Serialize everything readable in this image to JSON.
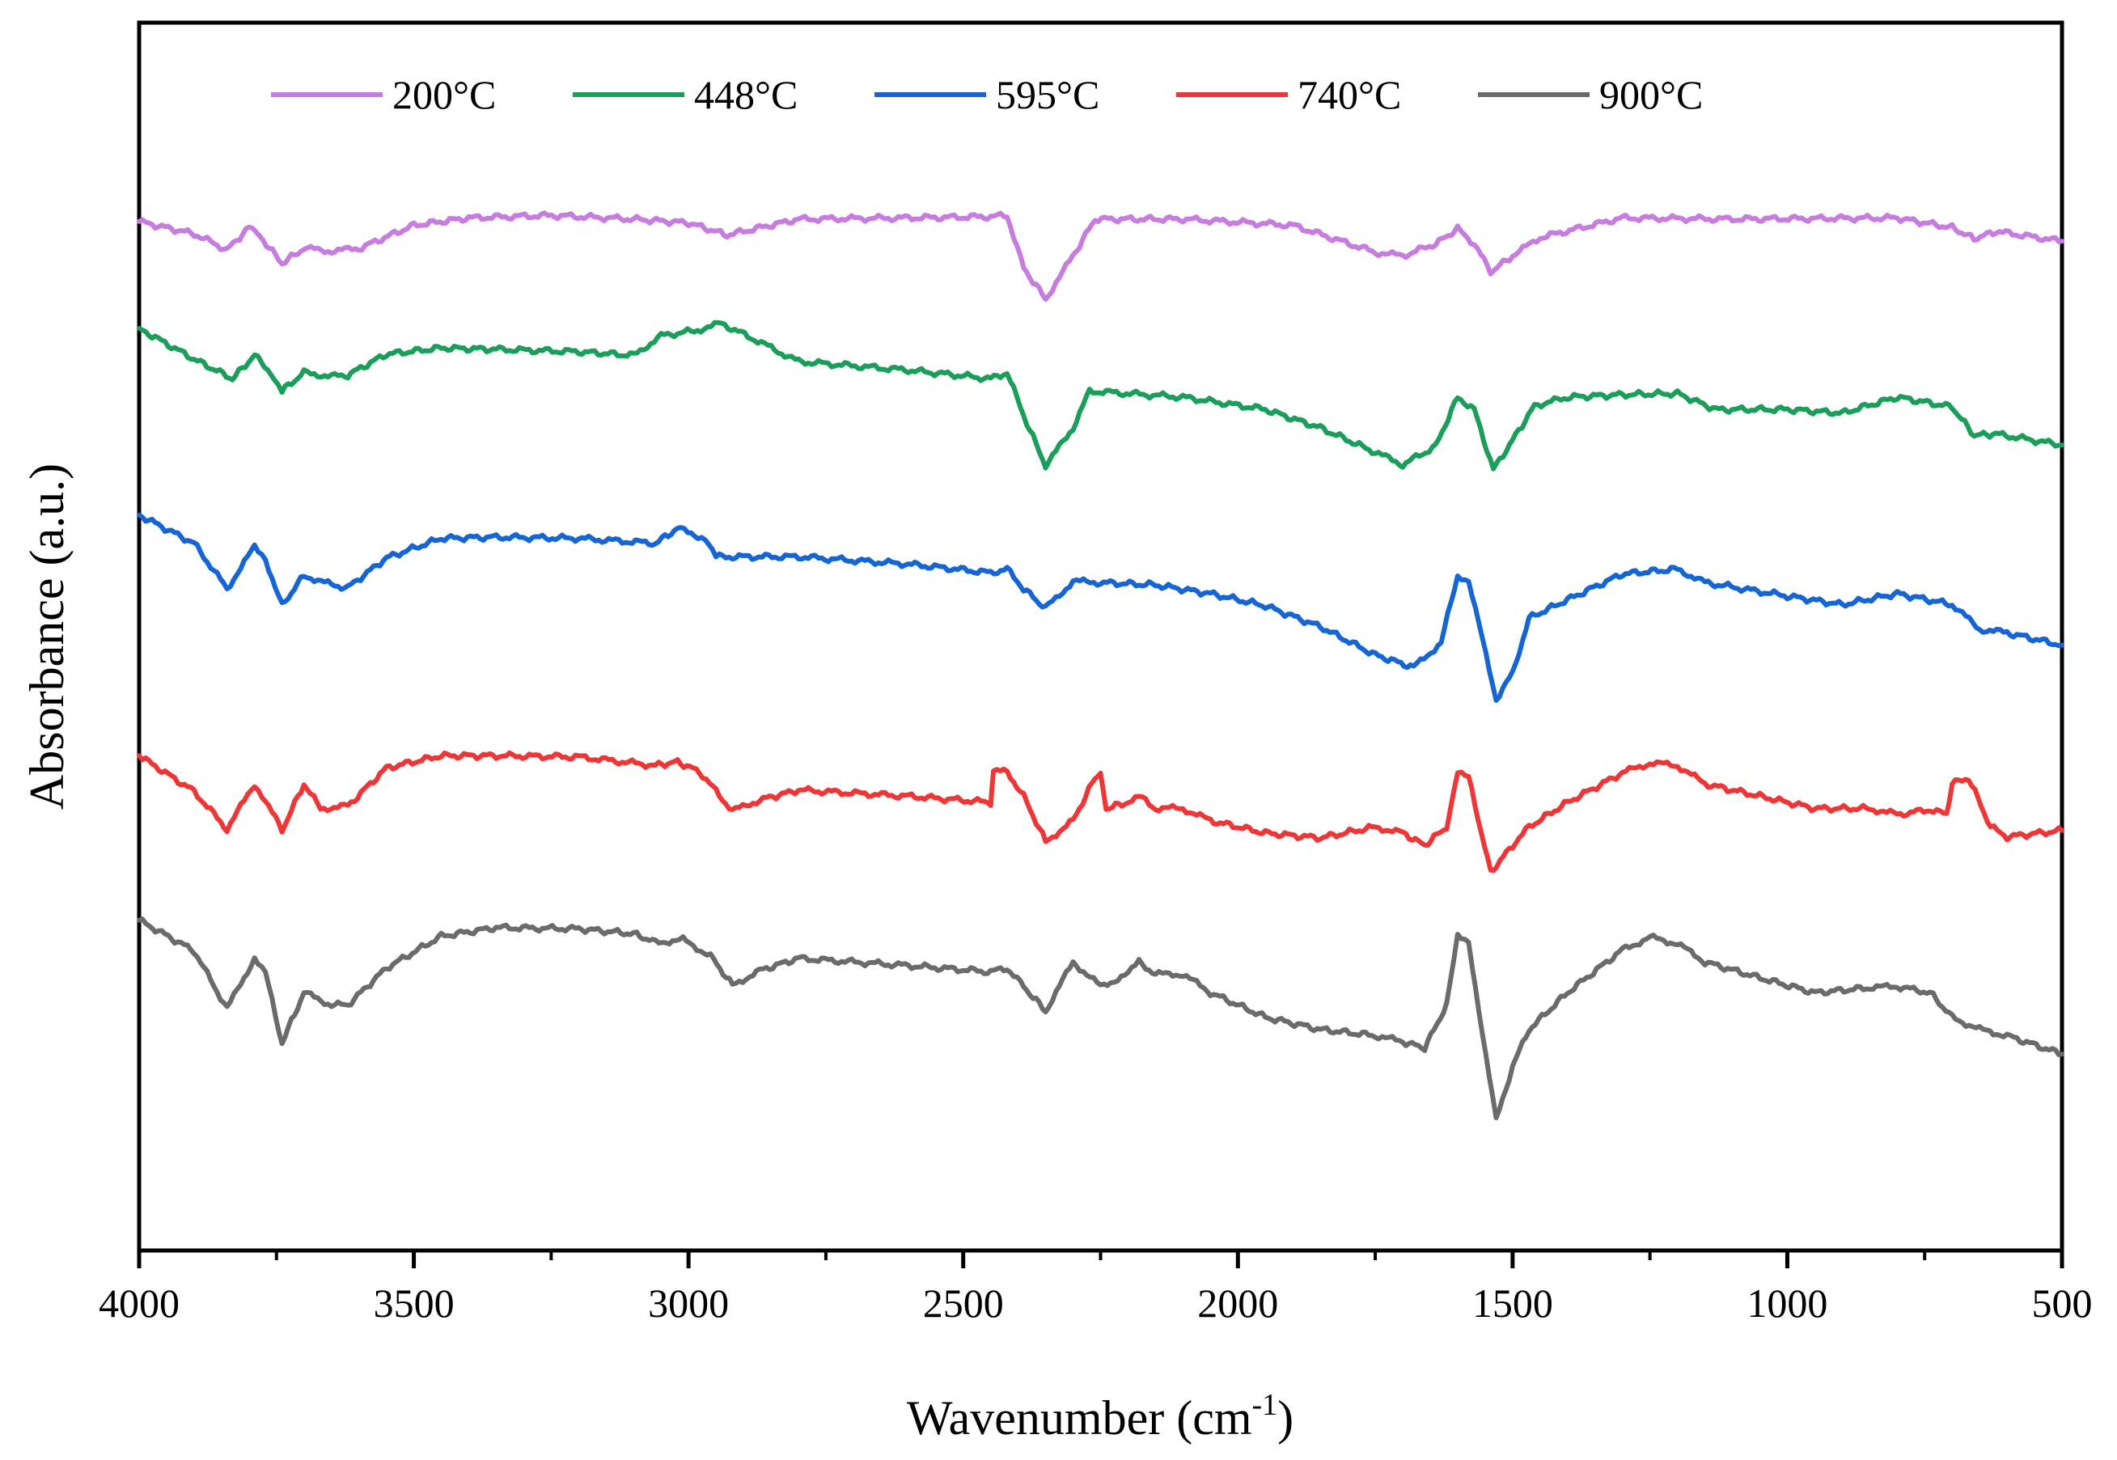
{
  "chart_data": {
    "type": "line",
    "title": "",
    "xlabel": "Wavenumber (cm",
    "xlabel_sup": "-1",
    "xlabel_close": ")",
    "ylabel": "Absorbance (a.u.)",
    "xlim": [
      4000,
      500
    ],
    "x_reversed": true,
    "xticks": [
      4000,
      3500,
      3000,
      2500,
      2000,
      1500,
      1000,
      500
    ],
    "xtick_labels": [
      "4000",
      "3500",
      "3000",
      "2500",
      "2000",
      "1500",
      "1000",
      "500"
    ],
    "y_tick_labels_shown": false,
    "ylim": [
      0,
      100
    ],
    "legend_position": "top",
    "series": [
      {
        "name": "200°C",
        "color": "#c77ce0",
        "points": [
          [
            4000,
            83.8
          ],
          [
            3900,
            82.8
          ],
          [
            3840,
            81.5
          ],
          [
            3800,
            83.3
          ],
          [
            3780,
            82.6
          ],
          [
            3740,
            80.4
          ],
          [
            3700,
            81.6
          ],
          [
            3650,
            81.4
          ],
          [
            3600,
            81.6
          ],
          [
            3500,
            83.5
          ],
          [
            3400,
            84.1
          ],
          [
            3250,
            84.3
          ],
          [
            3100,
            84.0
          ],
          [
            3000,
            83.7
          ],
          [
            2930,
            82.7
          ],
          [
            2800,
            84.0
          ],
          [
            2600,
            84.1
          ],
          [
            2450,
            84.2
          ],
          [
            2420,
            84.3
          ],
          [
            2390,
            80.0
          ],
          [
            2350,
            77.5
          ],
          [
            2300,
            81.0
          ],
          [
            2260,
            84.0
          ],
          [
            2100,
            84.0
          ],
          [
            1900,
            83.5
          ],
          [
            1750,
            81.3
          ],
          [
            1700,
            81.0
          ],
          [
            1640,
            82.0
          ],
          [
            1600,
            83.2
          ],
          [
            1570,
            82.0
          ],
          [
            1540,
            79.7
          ],
          [
            1500,
            81.0
          ],
          [
            1450,
            82.5
          ],
          [
            1300,
            84.1
          ],
          [
            1100,
            84.0
          ],
          [
            800,
            84.1
          ],
          [
            700,
            83.3
          ],
          [
            660,
            82.4
          ],
          [
            620,
            83.0
          ],
          [
            500,
            82.2
          ]
        ]
      },
      {
        "name": "448°C",
        "color": "#1a9e5a",
        "points": [
          [
            4000,
            75.1
          ],
          [
            3900,
            72.6
          ],
          [
            3830,
            71.0
          ],
          [
            3790,
            72.9
          ],
          [
            3760,
            71.5
          ],
          [
            3740,
            70.0
          ],
          [
            3700,
            71.5
          ],
          [
            3650,
            71.2
          ],
          [
            3620,
            71.3
          ],
          [
            3550,
            73.0
          ],
          [
            3450,
            73.5
          ],
          [
            3350,
            73.4
          ],
          [
            3200,
            73.2
          ],
          [
            3100,
            72.9
          ],
          [
            3050,
            74.5
          ],
          [
            2990,
            74.9
          ],
          [
            2940,
            75.5
          ],
          [
            2880,
            74.2
          ],
          [
            2800,
            72.4
          ],
          [
            2600,
            71.7
          ],
          [
            2450,
            71.0
          ],
          [
            2420,
            71.5
          ],
          [
            2390,
            68.0
          ],
          [
            2350,
            63.9
          ],
          [
            2300,
            67.0
          ],
          [
            2270,
            70.0
          ],
          [
            2100,
            69.5
          ],
          [
            1950,
            68.5
          ],
          [
            1850,
            67.0
          ],
          [
            1750,
            65.0
          ],
          [
            1700,
            64.0
          ],
          [
            1640,
            65.5
          ],
          [
            1600,
            69.5
          ],
          [
            1570,
            68.5
          ],
          [
            1535,
            63.6
          ],
          [
            1500,
            66.0
          ],
          [
            1460,
            68.8
          ],
          [
            1400,
            69.5
          ],
          [
            1300,
            69.7
          ],
          [
            1200,
            69.8
          ],
          [
            1130,
            68.5
          ],
          [
            1000,
            68.5
          ],
          [
            900,
            68.2
          ],
          [
            800,
            69.5
          ],
          [
            700,
            68.7
          ],
          [
            660,
            66.4
          ],
          [
            620,
            66.5
          ],
          [
            500,
            65.6
          ]
        ]
      },
      {
        "name": "595°C",
        "color": "#1565d4",
        "points": [
          [
            4000,
            59.9
          ],
          [
            3900,
            57.6
          ],
          [
            3840,
            53.9
          ],
          [
            3790,
            57.3
          ],
          [
            3770,
            56.3
          ],
          [
            3740,
            52.5
          ],
          [
            3700,
            55.0
          ],
          [
            3650,
            54.2
          ],
          [
            3620,
            54.0
          ],
          [
            3550,
            56.4
          ],
          [
            3450,
            58.0
          ],
          [
            3350,
            58.1
          ],
          [
            3200,
            58.0
          ],
          [
            3060,
            57.6
          ],
          [
            3020,
            58.8
          ],
          [
            2970,
            58.0
          ],
          [
            2950,
            56.5
          ],
          [
            2800,
            56.5
          ],
          [
            2600,
            55.9
          ],
          [
            2450,
            55.2
          ],
          [
            2420,
            55.5
          ],
          [
            2390,
            53.9
          ],
          [
            2350,
            52.3
          ],
          [
            2300,
            54.5
          ],
          [
            2250,
            54.4
          ],
          [
            2150,
            54.2
          ],
          [
            2050,
            53.5
          ],
          [
            1950,
            52.5
          ],
          [
            1850,
            50.8
          ],
          [
            1750,
            48.5
          ],
          [
            1680,
            47.5
          ],
          [
            1630,
            49.5
          ],
          [
            1600,
            55.0
          ],
          [
            1580,
            54.6
          ],
          [
            1530,
            44.9
          ],
          [
            1500,
            47.0
          ],
          [
            1470,
            51.5
          ],
          [
            1400,
            53.0
          ],
          [
            1300,
            55.1
          ],
          [
            1200,
            55.5
          ],
          [
            1150,
            54.4
          ],
          [
            1000,
            53.3
          ],
          [
            900,
            52.6
          ],
          [
            800,
            53.5
          ],
          [
            700,
            52.6
          ],
          [
            650,
            50.6
          ],
          [
            600,
            50.3
          ],
          [
            500,
            49.3
          ]
        ]
      },
      {
        "name": "740°C",
        "color": "#ee3636",
        "points": [
          [
            4000,
            40.3
          ],
          [
            3900,
            37.4
          ],
          [
            3840,
            34.3
          ],
          [
            3790,
            38.0
          ],
          [
            3770,
            36.7
          ],
          [
            3740,
            34.2
          ],
          [
            3700,
            38.0
          ],
          [
            3670,
            36.0
          ],
          [
            3620,
            36.2
          ],
          [
            3550,
            39.3
          ],
          [
            3450,
            40.3
          ],
          [
            3350,
            40.3
          ],
          [
            3200,
            40.2
          ],
          [
            3060,
            39.5
          ],
          [
            3020,
            39.8
          ],
          [
            2980,
            39.0
          ],
          [
            2920,
            35.8
          ],
          [
            2870,
            36.7
          ],
          [
            2800,
            37.5
          ],
          [
            2600,
            37.0
          ],
          [
            2450,
            36.5
          ],
          [
            2445,
            39.0
          ],
          [
            2420,
            39.0
          ],
          [
            2390,
            37.0
          ],
          [
            2350,
            33.3
          ],
          [
            2300,
            35.0
          ],
          [
            2260,
            38.5
          ],
          [
            2250,
            38.8
          ],
          [
            2240,
            36.0
          ],
          [
            2200,
            36.5
          ],
          [
            2180,
            37.0
          ],
          [
            2150,
            36.0
          ],
          [
            2100,
            36.0
          ],
          [
            2050,
            35.0
          ],
          [
            1950,
            34.0
          ],
          [
            1850,
            33.6
          ],
          [
            1750,
            34.5
          ],
          [
            1700,
            34.0
          ],
          [
            1660,
            33.0
          ],
          [
            1620,
            34.5
          ],
          [
            1600,
            39.0
          ],
          [
            1580,
            38.5
          ],
          [
            1540,
            30.8
          ],
          [
            1500,
            33.0
          ],
          [
            1470,
            34.5
          ],
          [
            1400,
            36.5
          ],
          [
            1300,
            38.9
          ],
          [
            1250,
            39.7
          ],
          [
            1200,
            39.5
          ],
          [
            1150,
            38.0
          ],
          [
            1050,
            37.0
          ],
          [
            950,
            36.0
          ],
          [
            850,
            36.0
          ],
          [
            800,
            35.5
          ],
          [
            740,
            35.9
          ],
          [
            710,
            35.5
          ],
          [
            700,
            38.0
          ],
          [
            670,
            38.5
          ],
          [
            630,
            34.5
          ],
          [
            600,
            33.7
          ],
          [
            500,
            34.2
          ]
        ]
      },
      {
        "name": "900°C",
        "color": "#6b6b6b",
        "points": [
          [
            4000,
            26.9
          ],
          [
            3900,
            24.4
          ],
          [
            3840,
            19.7
          ],
          [
            3790,
            23.8
          ],
          [
            3770,
            22.6
          ],
          [
            3740,
            16.9
          ],
          [
            3700,
            21.0
          ],
          [
            3650,
            20.0
          ],
          [
            3620,
            20.0
          ],
          [
            3550,
            23.0
          ],
          [
            3450,
            25.6
          ],
          [
            3350,
            26.3
          ],
          [
            3200,
            26.2
          ],
          [
            3100,
            25.8
          ],
          [
            3060,
            25.1
          ],
          [
            3010,
            25.3
          ],
          [
            2960,
            24.0
          ],
          [
            2920,
            21.6
          ],
          [
            2870,
            22.8
          ],
          [
            2800,
            23.8
          ],
          [
            2600,
            23.2
          ],
          [
            2450,
            22.7
          ],
          [
            2420,
            23.0
          ],
          [
            2390,
            21.5
          ],
          [
            2350,
            19.5
          ],
          [
            2300,
            23.5
          ],
          [
            2250,
            21.5
          ],
          [
            2200,
            22.5
          ],
          [
            2180,
            23.5
          ],
          [
            2150,
            22.5
          ],
          [
            2100,
            22.5
          ],
          [
            2050,
            21.0
          ],
          [
            1950,
            19.0
          ],
          [
            1850,
            18.0
          ],
          [
            1750,
            17.5
          ],
          [
            1700,
            17.0
          ],
          [
            1660,
            16.5
          ],
          [
            1620,
            20.0
          ],
          [
            1600,
            25.5
          ],
          [
            1580,
            25.0
          ],
          [
            1530,
            10.6
          ],
          [
            1500,
            15.0
          ],
          [
            1470,
            18.0
          ],
          [
            1400,
            21.0
          ],
          [
            1300,
            24.5
          ],
          [
            1250,
            25.5
          ],
          [
            1200,
            25.0
          ],
          [
            1150,
            23.5
          ],
          [
            1050,
            22.2
          ],
          [
            950,
            21.0
          ],
          [
            850,
            21.4
          ],
          [
            800,
            21.5
          ],
          [
            740,
            21.0
          ],
          [
            700,
            19.0
          ],
          [
            650,
            18.0
          ],
          [
            600,
            17.5
          ],
          [
            500,
            16.0
          ]
        ]
      }
    ]
  }
}
